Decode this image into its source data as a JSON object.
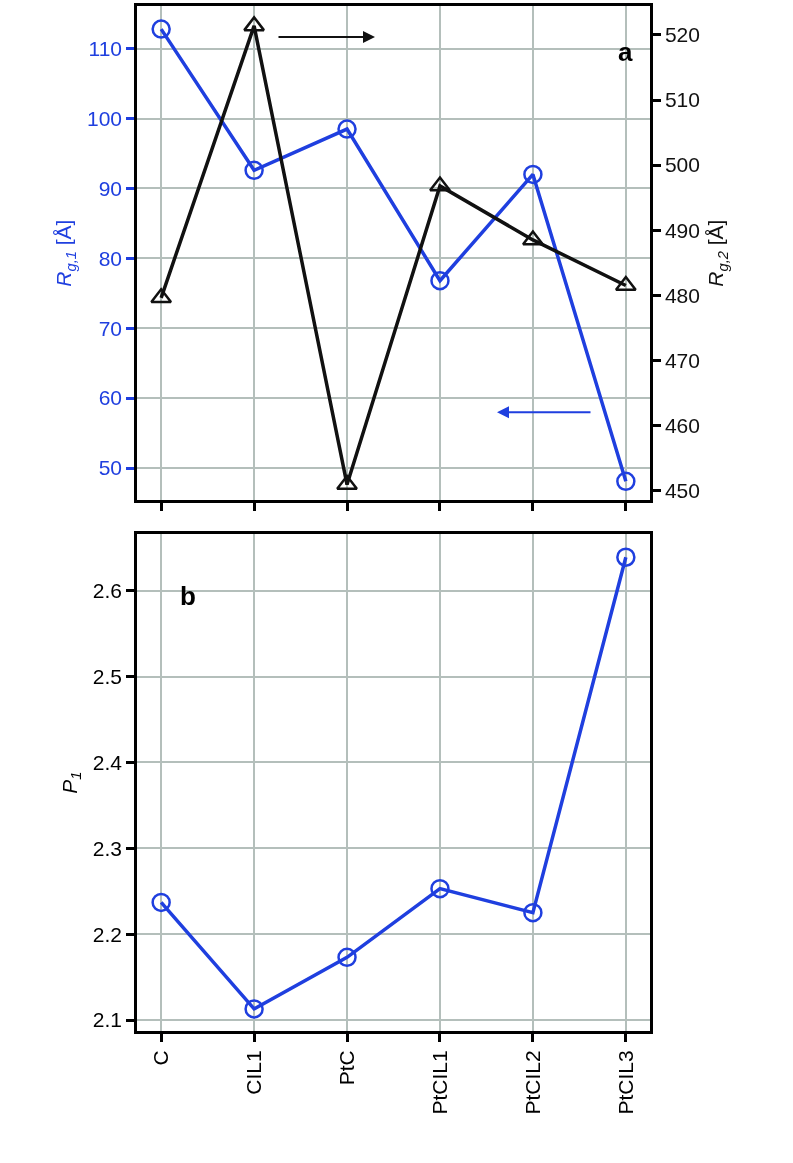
{
  "chart_data": [
    {
      "type": "line",
      "categories": [
        null,
        null,
        null,
        null,
        null,
        null
      ],
      "ylabel": "R$_{g,1}$ [Å]",
      "y2label": "R$_{g,2}$ [Å]",
      "ylim": [
        45.4,
        116.1
      ],
      "yticks": [
        50,
        60,
        70,
        80,
        90,
        100,
        110
      ],
      "y2lim": [
        448.5,
        524.45
      ],
      "y2ticks": [
        450,
        460,
        470,
        480,
        490,
        500,
        510,
        520
      ],
      "grid": true,
      "line_style": "solid",
      "annotations": [
        "a"
      ],
      "series": [
        {
          "color": "#1f3fdf",
          "marker": "circle",
          "values": [
            112.8,
            92.6,
            98.5,
            76.8,
            92.0,
            48.1
          ]
        },
        {
          "color": "#111111",
          "marker": "triangle",
          "axis": "y2",
          "values": [
            479.6,
            521.4,
            450.9,
            496.8,
            488.5,
            481.5
          ]
        }
      ]
    },
    {
      "type": "line",
      "categories": [
        "C",
        "CIL1",
        "PtC",
        "PtCIL1",
        "PtCIL2",
        "PtCIL3"
      ],
      "ylabel": "P$_{1}$",
      "ylim": [
        2.087,
        2.666
      ],
      "yticks": [
        2.1,
        2.2,
        2.3,
        2.4,
        2.5,
        2.6
      ],
      "grid": true,
      "line_style": "solid",
      "annotations": [
        "b"
      ],
      "series": [
        {
          "color": "#1f3fdf",
          "marker": "circle",
          "values": [
            2.237,
            2.113,
            2.173,
            2.253,
            2.225,
            2.639
          ]
        }
      ]
    }
  ]
}
